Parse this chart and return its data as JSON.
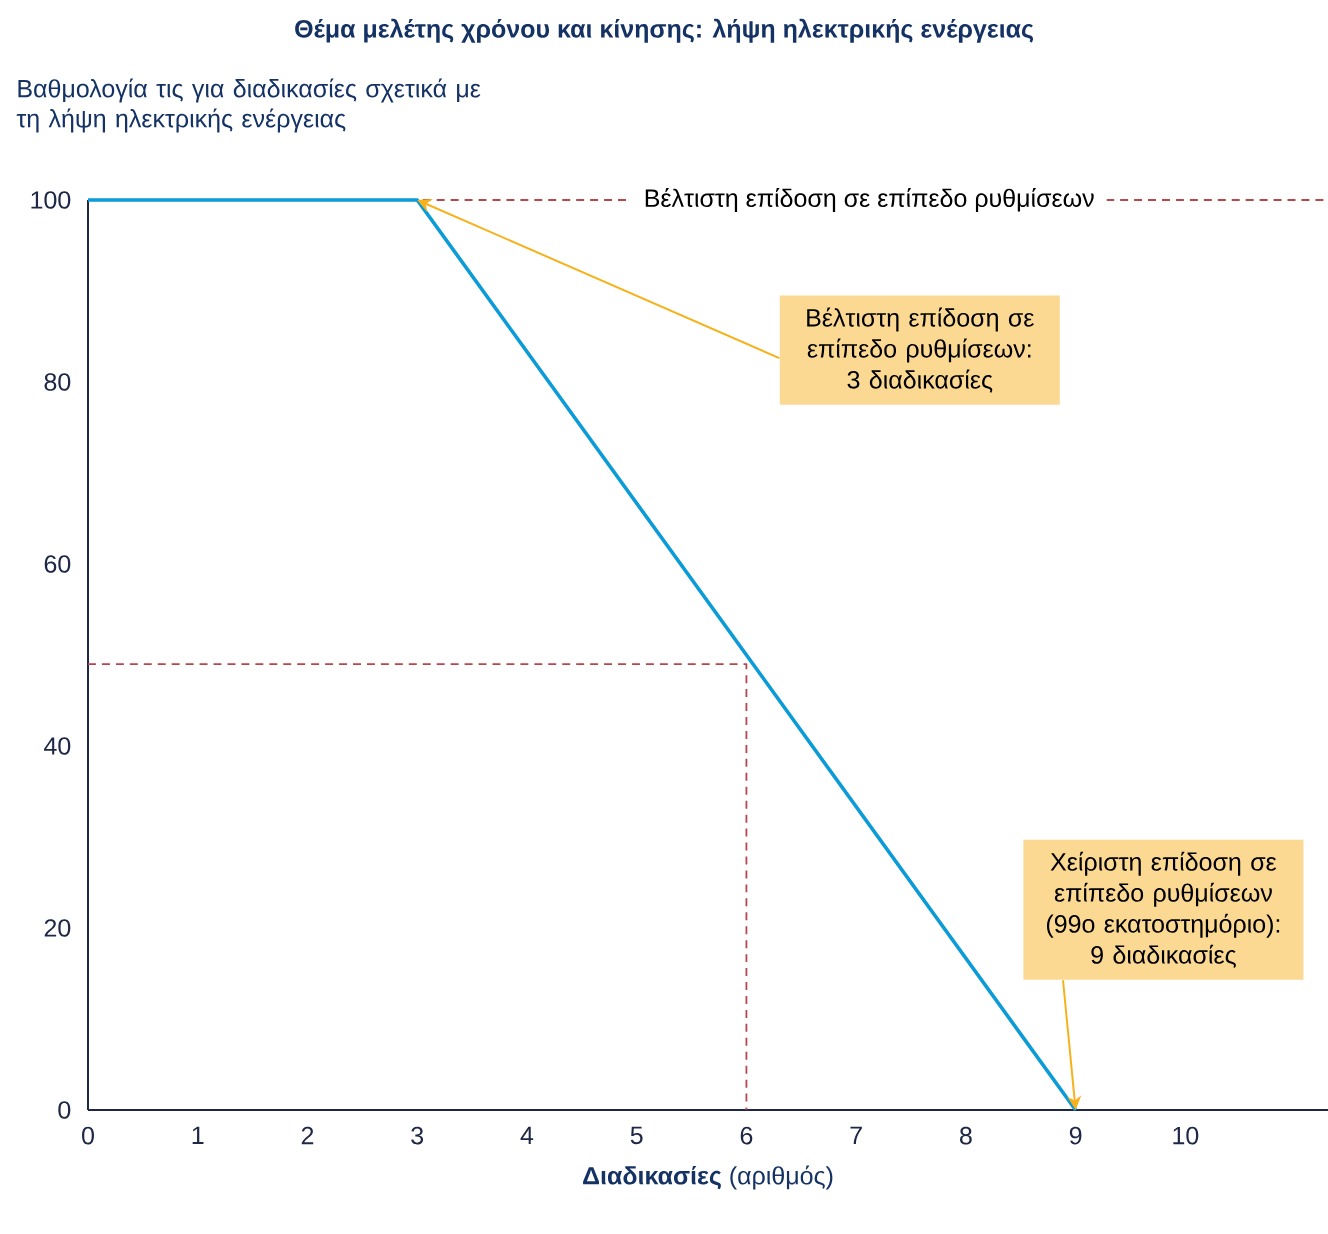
{
  "chart_data": {
    "type": "line",
    "title": "Θέμα μελέτης χρόνου και κίνησης: λήψη ηλεκτρικής ενέργειας",
    "ylabel": "Βαθμολογία τις για διαδικασίες σχετικά με τη λήψη ηλεκτρικής ενέργειας",
    "xlabel": "**Διαδικασίες** (αριθμός)",
    "xlim": [
      0,
      11.3
    ],
    "ylim": [
      0,
      100
    ],
    "xticks": [
      0,
      1,
      2,
      3,
      4,
      5,
      6,
      7,
      8,
      9,
      10
    ],
    "yticks": [
      0,
      20,
      40,
      60,
      80,
      100
    ],
    "series": [
      {
        "color": "#0b9bd7",
        "line_style": "solid",
        "x": [
          0,
          3,
          9
        ],
        "values": [
          100,
          100,
          0
        ]
      },
      {
        "color": "#b5474d",
        "line_style": "dashed",
        "x": [
          0,
          6,
          6
        ],
        "values": [
          49,
          49,
          0
        ]
      }
    ],
    "ref_lines": [
      {
        "axis": "y",
        "value": 100,
        "label": "Βέλτιστη επίδοση σε επίπεδο ρυθμίσεων",
        "color": "#b5474d",
        "line_style": "dashed"
      }
    ],
    "annotations": [
      {
        "text": "Βέλτιστη επίδοση σε επίπεδο ρυθμίσεων: 3 διαδικασίες",
        "x": 3,
        "y": 100
      },
      {
        "text": "Χείριστη επίδοση σε επίπεδο ρυθμίσεων (99ο εκατοστημόριο): 9 διαδικασίες",
        "x": 9,
        "y": 0
      }
    ]
  }
}
